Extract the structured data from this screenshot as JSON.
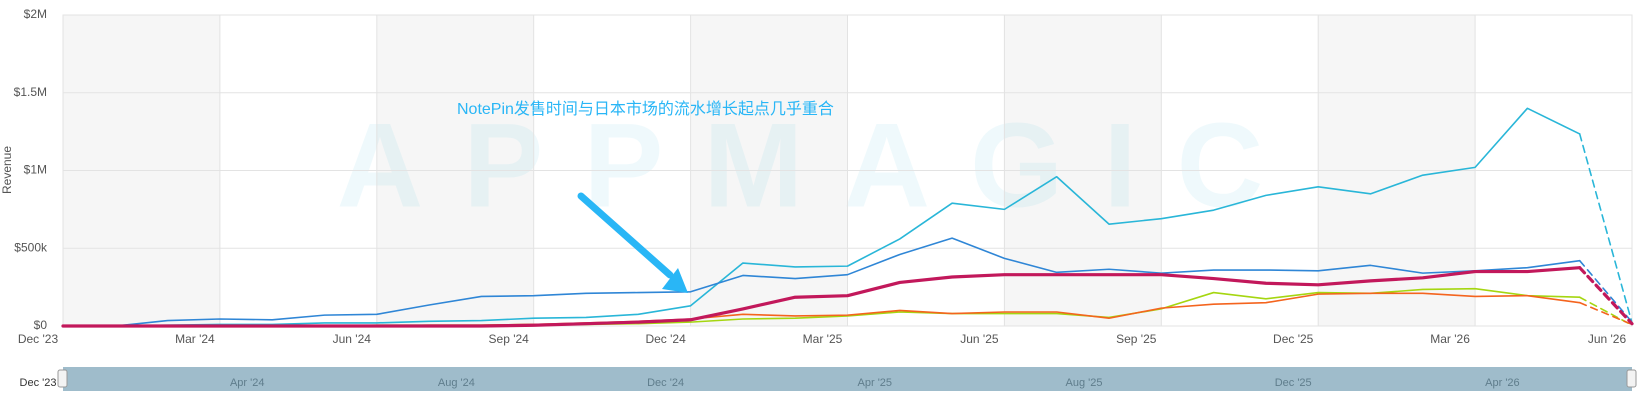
{
  "chart_data": {
    "type": "line",
    "y_axis_label": "Revenue",
    "watermark": "APPMAGIC",
    "annotation": "NotePin发售时间与日本市场的流水增长起点几乎重合",
    "categories": [
      "Dec '23",
      null,
      null,
      "Mar '24",
      null,
      null,
      "Jun '24",
      null,
      null,
      "Sep '24",
      null,
      null,
      "Dec '24",
      null,
      null,
      "Mar '25",
      null,
      null,
      "Jun '25",
      null,
      null,
      "Sep '25",
      null,
      null,
      "Dec '25",
      null,
      null,
      "Mar '26",
      null,
      null,
      "Jun '26"
    ],
    "ylim": [
      0,
      2000000
    ],
    "yticks": [
      {
        "value": 0,
        "label": "$0"
      },
      {
        "value": 500000,
        "label": "$500k"
      },
      {
        "value": 1000000,
        "label": "$1M"
      },
      {
        "value": 1500000,
        "label": "$1.5M"
      },
      {
        "value": 2000000,
        "label": "$2M"
      }
    ],
    "grid": true,
    "last_segment_dashed": true,
    "series": [
      {
        "color": "#29b6d8",
        "width": 1.6,
        "values": [
          0,
          0,
          5000,
          10000,
          10000,
          20000,
          20000,
          30000,
          35000,
          50000,
          55000,
          75000,
          130000,
          405000,
          380000,
          385000,
          560000,
          790000,
          750000,
          960000,
          655000,
          690000,
          745000,
          840000,
          895000,
          850000,
          970000,
          1020000,
          1400000,
          1235000,
          20000
        ]
      },
      {
        "color": "#2f86d6",
        "width": 1.6,
        "values": [
          0,
          0,
          35000,
          45000,
          40000,
          70000,
          75000,
          135000,
          190000,
          195000,
          210000,
          215000,
          220000,
          325000,
          305000,
          330000,
          460000,
          565000,
          435000,
          345000,
          365000,
          340000,
          360000,
          360000,
          355000,
          390000,
          340000,
          355000,
          375000,
          420000,
          25000
        ]
      },
      {
        "color": "#a5d610",
        "width": 1.6,
        "values": [
          0,
          0,
          0,
          0,
          0,
          0,
          5000,
          5000,
          5000,
          10000,
          10000,
          15000,
          25000,
          45000,
          50000,
          65000,
          90000,
          80000,
          80000,
          80000,
          55000,
          110000,
          215000,
          175000,
          215000,
          210000,
          235000,
          240000,
          195000,
          185000,
          5000
        ]
      },
      {
        "color": "#f4641e",
        "width": 1.6,
        "values": [
          0,
          0,
          0,
          0,
          0,
          0,
          0,
          5000,
          5000,
          10000,
          20000,
          30000,
          45000,
          75000,
          65000,
          70000,
          100000,
          80000,
          90000,
          90000,
          50000,
          115000,
          140000,
          150000,
          205000,
          210000,
          210000,
          190000,
          195000,
          150000,
          10000
        ]
      },
      {
        "color": "#c2185b",
        "width": 3.2,
        "values": [
          0,
          0,
          0,
          0,
          0,
          0,
          0,
          0,
          0,
          5000,
          15000,
          25000,
          40000,
          110000,
          185000,
          195000,
          280000,
          315000,
          330000,
          330000,
          330000,
          330000,
          305000,
          275000,
          265000,
          290000,
          310000,
          350000,
          350000,
          375000,
          15000
        ]
      }
    ],
    "navigator": {
      "labels": [
        "Dec '23",
        "Apr '24",
        "Aug '24",
        "Dec '24",
        "Apr '25",
        "Aug '25",
        "Dec '25",
        "Apr '26"
      ]
    }
  }
}
